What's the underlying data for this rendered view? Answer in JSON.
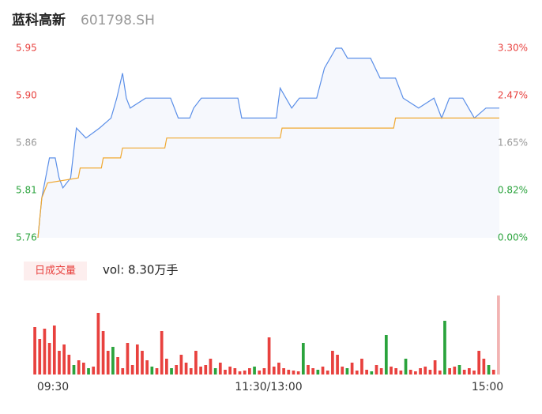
{
  "chart_data": {
    "type": "intraday",
    "title": "蓝科高新",
    "subtitle": "601798.SH",
    "xlim": [
      0,
      240
    ],
    "xticks": [
      {
        "value": 0,
        "label": "09:30"
      },
      {
        "value": 120,
        "label": "11:30/13:00"
      },
      {
        "value": 240,
        "label": "15:00"
      }
    ],
    "ylim": [
      5.76,
      5.95
    ],
    "yticks": [
      {
        "value": 5.95,
        "label": "5.95"
      },
      {
        "value": 5.9025,
        "label": "5.90"
      },
      {
        "value": 5.855,
        "label": "5.86"
      },
      {
        "value": 5.8075,
        "label": "5.81"
      },
      {
        "value": 5.76,
        "label": "5.76"
      }
    ],
    "ytick_colors": [
      "#e8413e",
      "#e8413e",
      "#999999",
      "#2aa33c",
      "#2aa33c"
    ],
    "y2lim": [
      0,
      3.3
    ],
    "y2ticks": [
      {
        "value": 3.3,
        "label": "3.30%"
      },
      {
        "value": 2.475,
        "label": "2.47%"
      },
      {
        "value": 1.65,
        "label": "1.65%"
      },
      {
        "value": 0.825,
        "label": "0.82%"
      },
      {
        "value": 0,
        "label": "0.00%"
      }
    ],
    "y2tick_colors": [
      "#e8413e",
      "#e8413e",
      "#999999",
      "#2aa33c",
      "#2aa33c"
    ],
    "series": [
      {
        "name": "price",
        "color": "#5b8fe8",
        "x": [
          0,
          2,
          3,
          6,
          9,
          11,
          13,
          17,
          20,
          25,
          32,
          38,
          41,
          44,
          46,
          48,
          56,
          69,
          73,
          79,
          81,
          85,
          104,
          106,
          124,
          126,
          132,
          136,
          145,
          149,
          155,
          158,
          161,
          173,
          178,
          186,
          190,
          198,
          206,
          210,
          214,
          221,
          227,
          233,
          240
        ],
        "values": [
          5.76,
          5.8,
          5.81,
          5.84,
          5.84,
          5.82,
          5.81,
          5.82,
          5.87,
          5.86,
          5.87,
          5.88,
          5.9,
          5.925,
          5.9,
          5.89,
          5.9,
          5.9,
          5.88,
          5.88,
          5.89,
          5.9,
          5.9,
          5.88,
          5.88,
          5.91,
          5.89,
          5.9,
          5.9,
          5.93,
          5.95,
          5.95,
          5.94,
          5.94,
          5.92,
          5.92,
          5.9,
          5.89,
          5.9,
          5.88,
          5.9,
          5.9,
          5.88,
          5.89,
          5.89
        ]
      },
      {
        "name": "average",
        "color": "#f0a830",
        "x": [
          0,
          2,
          5,
          21,
          22,
          33,
          34,
          43,
          44,
          66,
          67,
          126,
          127,
          185,
          186,
          240
        ],
        "values": [
          5.76,
          5.8,
          5.815,
          5.82,
          5.83,
          5.83,
          5.84,
          5.84,
          5.85,
          5.85,
          5.86,
          5.86,
          5.87,
          5.87,
          5.88,
          5.88
        ]
      }
    ],
    "volume": {
      "legend": "日成交量",
      "label": "vol: 8.30万手",
      "ylim": [
        0,
        100
      ],
      "values": [
        60,
        45,
        58,
        40,
        62,
        30,
        38,
        25,
        12,
        18,
        15,
        8,
        10,
        78,
        55,
        30,
        35,
        22,
        8,
        40,
        12,
        38,
        30,
        18,
        10,
        8,
        55,
        20,
        8,
        12,
        25,
        15,
        8,
        30,
        10,
        12,
        20,
        8,
        15,
        6,
        10,
        8,
        4,
        5,
        8,
        10,
        5,
        8,
        47,
        10,
        15,
        8,
        6,
        5,
        4,
        40,
        12,
        8,
        6,
        10,
        5,
        30,
        25,
        10,
        8,
        15,
        5,
        20,
        6,
        4,
        12,
        8,
        50,
        10,
        8,
        5,
        20,
        6,
        4,
        8,
        10,
        6,
        18,
        5,
        68,
        8,
        10,
        12,
        6,
        8,
        5,
        30,
        20,
        12,
        6,
        100
      ],
      "colors": [
        "#e8413e",
        "#e8413e",
        "#e8413e",
        "#e8413e",
        "#e8413e",
        "#e8413e",
        "#e8413e",
        "#e8413e",
        "#2aa33c",
        "#e8413e",
        "#e8413e",
        "#2aa33c",
        "#e8413e",
        "#e8413e",
        "#e8413e",
        "#e8413e",
        "#2aa33c",
        "#e8413e",
        "#e8413e",
        "#e8413e",
        "#e8413e",
        "#e8413e",
        "#e8413e",
        "#e8413e",
        "#2aa33c",
        "#e8413e",
        "#e8413e",
        "#e8413e",
        "#2aa33c",
        "#e8413e",
        "#e8413e",
        "#e8413e",
        "#e8413e",
        "#e8413e",
        "#e8413e",
        "#e8413e",
        "#e8413e",
        "#2aa33c",
        "#e8413e",
        "#e8413e",
        "#e8413e",
        "#e8413e",
        "#e8413e",
        "#e8413e",
        "#e8413e",
        "#2aa33c",
        "#e8413e",
        "#e8413e",
        "#e8413e",
        "#e8413e",
        "#e8413e",
        "#e8413e",
        "#e8413e",
        "#e8413e",
        "#e8413e",
        "#2aa33c",
        "#e8413e",
        "#e8413e",
        "#2aa33c",
        "#e8413e",
        "#e8413e",
        "#e8413e",
        "#e8413e",
        "#e8413e",
        "#2aa33c",
        "#e8413e",
        "#e8413e",
        "#e8413e",
        "#e8413e",
        "#2aa33c",
        "#e8413e",
        "#e8413e",
        "#2aa33c",
        "#e8413e",
        "#e8413e",
        "#e8413e",
        "#2aa33c",
        "#e8413e",
        "#e8413e",
        "#e8413e",
        "#e8413e",
        "#e8413e",
        "#e8413e",
        "#e8413e",
        "#2aa33c",
        "#e8413e",
        "#e8413e",
        "#2aa33c",
        "#e8413e",
        "#e8413e",
        "#e8413e",
        "#e8413e",
        "#e8413e",
        "#2aa33c",
        "#e8413e",
        "#f2b3b2"
      ]
    }
  }
}
